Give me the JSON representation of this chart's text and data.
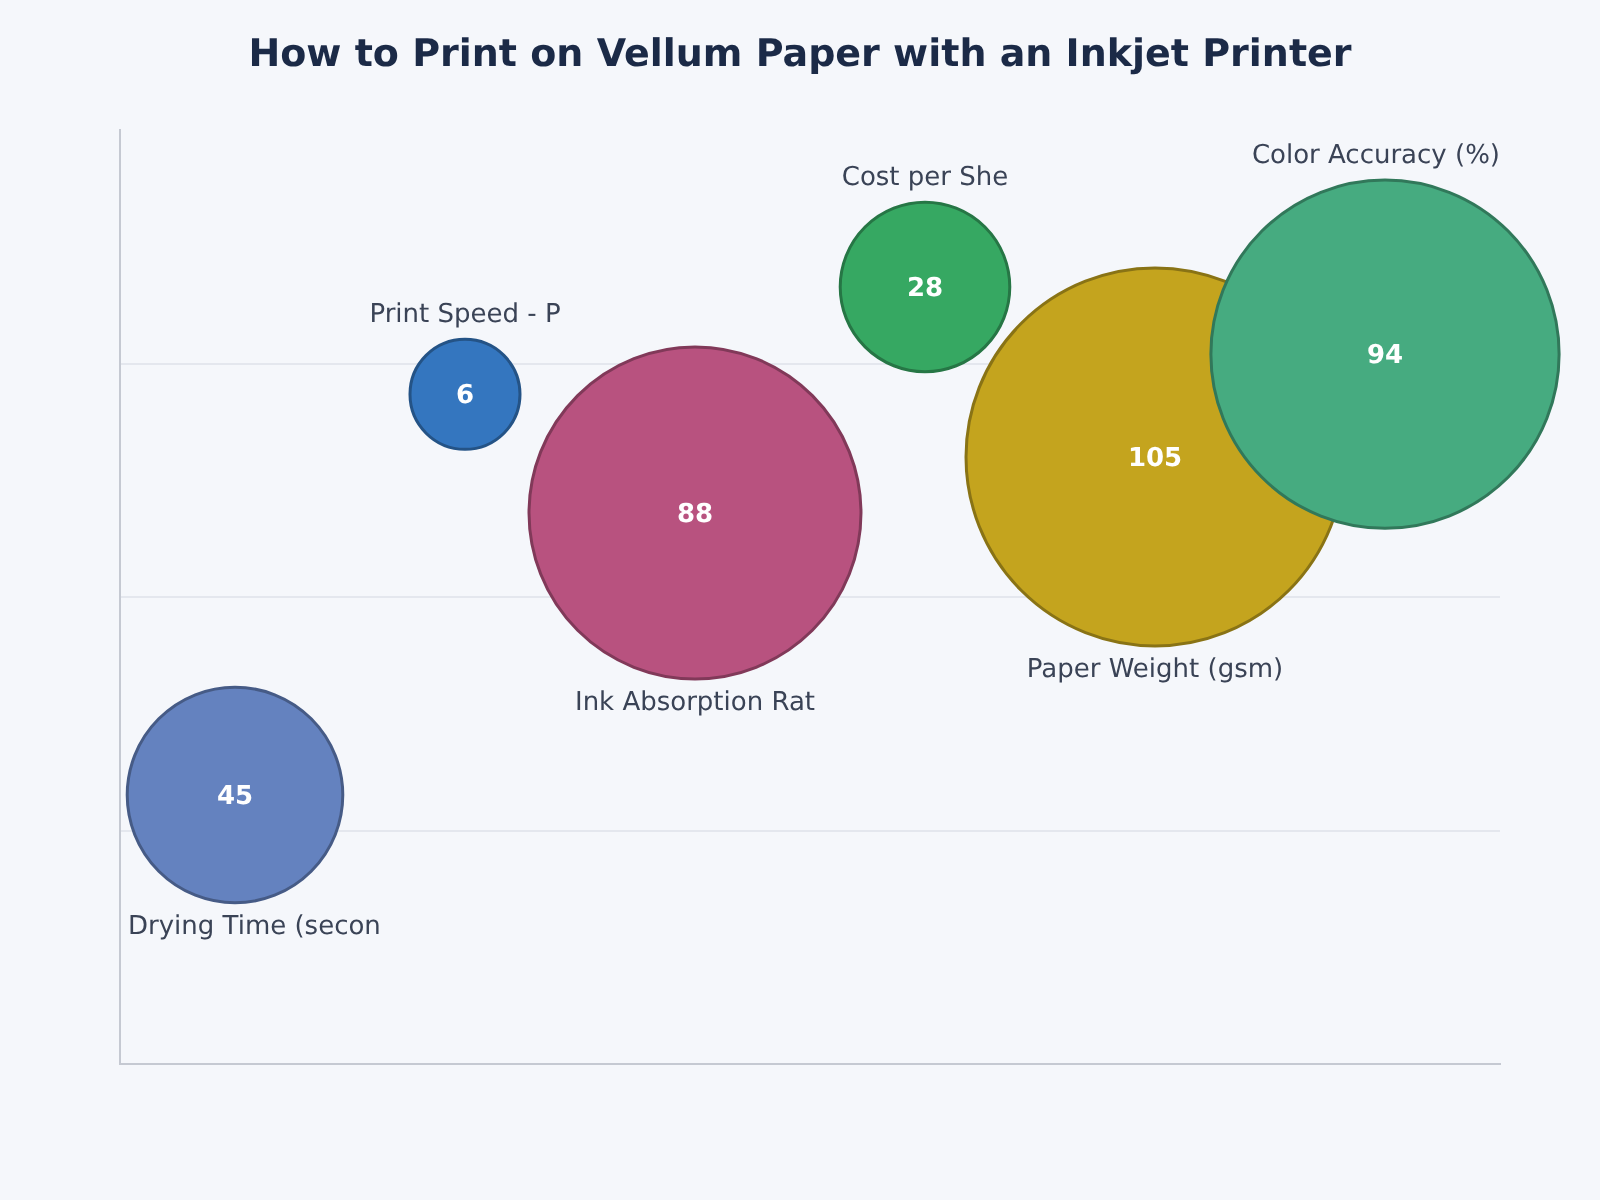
{
  "chart_data": {
    "type": "other",
    "title": "How to Print on Vellum Paper with an Inkjet Printer",
    "categories": [
      "Drying Time (secon",
      "Print Speed - P",
      "Ink Absorption Rat",
      "Cost per She",
      "Paper Weight (gsm)",
      "Color Accuracy (%)"
    ],
    "values": [
      45,
      6,
      88,
      28,
      105,
      94
    ],
    "colors": [
      "#6482bf",
      "#3476bf",
      "#b8527f",
      "#36a862",
      "#c4a41e",
      "#46ab80"
    ],
    "data_labels": true
  }
}
